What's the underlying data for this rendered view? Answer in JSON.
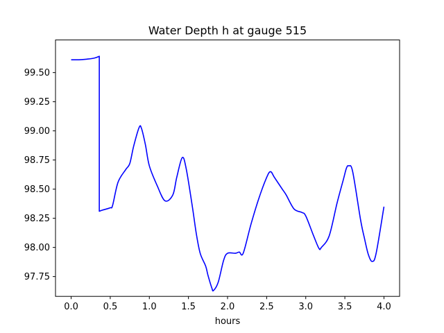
{
  "chart_data": {
    "type": "line",
    "title": "Water Depth h at gauge 515",
    "xlabel": "hours",
    "ylabel": "",
    "xlim": [
      -0.2,
      4.2
    ],
    "ylim": [
      97.58,
      99.78
    ],
    "grid": false,
    "legend": "none",
    "xticks": [
      0.0,
      0.5,
      1.0,
      1.5,
      2.0,
      2.5,
      3.0,
      3.5,
      4.0
    ],
    "xtick_labels": [
      "0.0",
      "0.5",
      "1.0",
      "1.5",
      "2.0",
      "2.5",
      "3.0",
      "3.5",
      "4.0"
    ],
    "yticks": [
      97.75,
      98.0,
      98.25,
      98.5,
      98.75,
      99.0,
      99.25,
      99.5
    ],
    "ytick_labels": [
      "97.75",
      "98.00",
      "98.25",
      "98.50",
      "98.75",
      "99.00",
      "99.25",
      "99.50"
    ],
    "series": [
      {
        "color": "#0000ff",
        "x": [
          0.0,
          0.1,
          0.2,
          0.3,
          0.36,
          0.36,
          0.4,
          0.5,
          0.53,
          0.6,
          0.7,
          0.75,
          0.8,
          0.87,
          0.9,
          0.95,
          1.0,
          1.1,
          1.2,
          1.3,
          1.35,
          1.42,
          1.47,
          1.55,
          1.6,
          1.65,
          1.72,
          1.75,
          1.8,
          1.82,
          1.88,
          1.95,
          2.0,
          2.1,
          2.15,
          2.2,
          2.3,
          2.4,
          2.5,
          2.55,
          2.6,
          2.7,
          2.75,
          2.85,
          2.95,
          3.0,
          3.1,
          3.17,
          3.2,
          3.3,
          3.4,
          3.48,
          3.52,
          3.55,
          3.6,
          3.7,
          3.75,
          3.8,
          3.85,
          3.9,
          4.0
        ],
        "y": [
          99.61,
          99.61,
          99.615,
          99.625,
          99.64,
          98.31,
          98.32,
          98.34,
          98.36,
          98.56,
          98.67,
          98.72,
          98.87,
          99.03,
          99.02,
          98.88,
          98.7,
          98.53,
          98.4,
          98.45,
          98.6,
          98.77,
          98.68,
          98.35,
          98.12,
          97.95,
          97.84,
          97.76,
          97.65,
          97.63,
          97.7,
          97.89,
          97.95,
          97.95,
          97.96,
          97.95,
          98.2,
          98.42,
          98.6,
          98.65,
          98.6,
          98.5,
          98.45,
          98.33,
          98.3,
          98.27,
          98.1,
          97.99,
          98.0,
          98.1,
          98.38,
          98.58,
          98.68,
          98.7,
          98.65,
          98.24,
          98.08,
          97.94,
          97.88,
          97.95,
          98.35
        ]
      }
    ]
  }
}
